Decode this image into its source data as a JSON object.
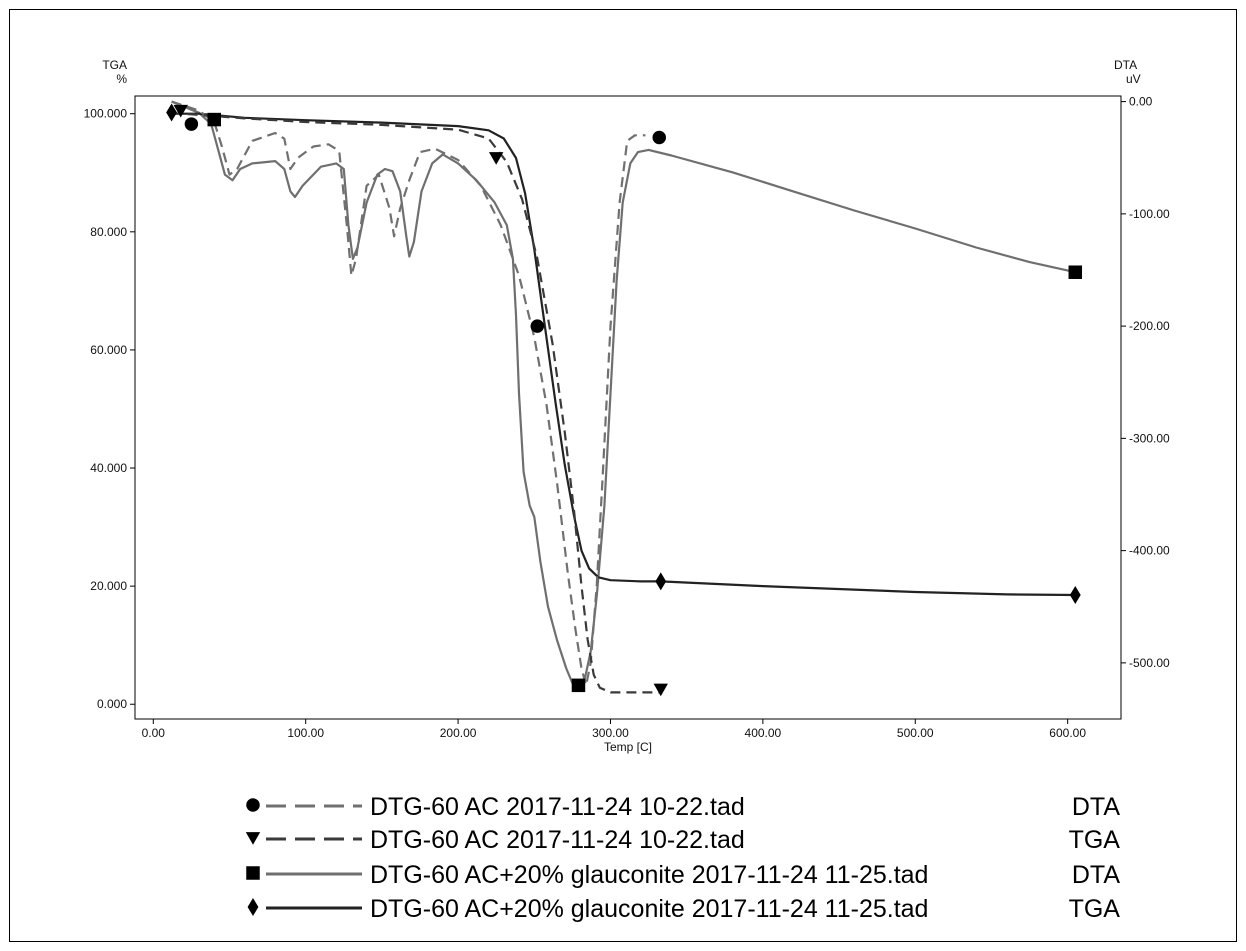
{
  "chart_data": {
    "type": "line",
    "title": "",
    "xlabel": "Temp  [C]",
    "y_left": {
      "title_line1": "TGA",
      "title_line2": "%",
      "ticks": [
        0,
        20,
        40,
        60,
        80,
        100
      ],
      "tick_labels": [
        "0.000",
        "20.000",
        "40.000",
        "60.000",
        "80.000",
        "100.000"
      ],
      "range": [
        -2.5,
        103
      ]
    },
    "y_right": {
      "title_line1": "DTA",
      "title_line2": "uV",
      "ticks": [
        0,
        -100,
        -200,
        -300,
        -400,
        -500
      ],
      "tick_labels": [
        "0.00",
        "-100.00",
        "-200.00",
        "-300.00",
        "-400.00",
        "-500.00"
      ],
      "range": [
        -550,
        5
      ]
    },
    "x_axis": {
      "ticks": [
        0,
        100,
        200,
        300,
        400,
        500,
        600
      ],
      "tick_labels": [
        "0.00",
        "100.00",
        "200.00",
        "300.00",
        "400.00",
        "500.00",
        "600.00"
      ],
      "range": [
        -12,
        635
      ]
    },
    "grid": false,
    "legend_position": "bottom",
    "series": [
      {
        "name": "DTG-60 AC 2017-11-24 10-22.tad",
        "quantity": "DTA",
        "axis": "right",
        "marker": "circle",
        "dash": "dashed",
        "color": "#707070",
        "points": [
          [
            12,
            0
          ],
          [
            30,
            -8
          ],
          [
            40,
            -18
          ],
          [
            45,
            -40
          ],
          [
            50,
            -65
          ],
          [
            55,
            -60
          ],
          [
            65,
            -35
          ],
          [
            80,
            -28
          ],
          [
            86,
            -33
          ],
          [
            90,
            -60
          ],
          [
            95,
            -50
          ],
          [
            105,
            -40
          ],
          [
            115,
            -38
          ],
          [
            122,
            -44
          ],
          [
            127,
            -110
          ],
          [
            130,
            -155
          ],
          [
            133,
            -140
          ],
          [
            140,
            -75
          ],
          [
            148,
            -65
          ],
          [
            155,
            -95
          ],
          [
            158,
            -120
          ],
          [
            162,
            -95
          ],
          [
            168,
            -70
          ],
          [
            175,
            -45
          ],
          [
            185,
            -42
          ],
          [
            200,
            -52
          ],
          [
            215,
            -75
          ],
          [
            228,
            -110
          ],
          [
            240,
            -155
          ],
          [
            250,
            -210
          ],
          [
            258,
            -270
          ],
          [
            265,
            -340
          ],
          [
            272,
            -420
          ],
          [
            277,
            -470
          ],
          [
            281,
            -505
          ],
          [
            284,
            -520
          ],
          [
            287,
            -500
          ],
          [
            291,
            -430
          ],
          [
            295,
            -330
          ],
          [
            300,
            -200
          ],
          [
            306,
            -90
          ],
          [
            311,
            -35
          ],
          [
            316,
            -30
          ],
          [
            320,
            -30
          ],
          [
            323,
            -30
          ]
        ],
        "markers": [
          [
            25,
            -20
          ],
          [
            252,
            -200
          ],
          [
            332,
            -32
          ]
        ]
      },
      {
        "name": "DTG-60 AC 2017-11-24 10-22.tad",
        "quantity": "TGA",
        "axis": "left",
        "marker": "triangle-down",
        "dash": "dashed",
        "color": "#3a3a3a",
        "points": [
          [
            12,
            100
          ],
          [
            20,
            100
          ],
          [
            60,
            99.2
          ],
          [
            100,
            98.6
          ],
          [
            150,
            98.1
          ],
          [
            200,
            97.3
          ],
          [
            220,
            95.8
          ],
          [
            232,
            91.8
          ],
          [
            242,
            85.5
          ],
          [
            252,
            75.5
          ],
          [
            262,
            61
          ],
          [
            270,
            46
          ],
          [
            276,
            33
          ],
          [
            281,
            20
          ],
          [
            285,
            11
          ],
          [
            289,
            5
          ],
          [
            293,
            2.8
          ],
          [
            300,
            2
          ],
          [
            312,
            2
          ],
          [
            320,
            2
          ],
          [
            333,
            2
          ]
        ],
        "markers": [
          [
            18,
            100.5
          ],
          [
            225,
            92.5
          ],
          [
            333,
            2.5
          ]
        ]
      },
      {
        "name": "DTG-60 AC+20% glauconite 2017-11-24 11-25.tad",
        "quantity": "DTA",
        "axis": "right",
        "marker": "square",
        "dash": "solid",
        "color": "#6f6f6f",
        "points": [
          [
            12,
            0
          ],
          [
            30,
            -10
          ],
          [
            38,
            -20
          ],
          [
            43,
            -45
          ],
          [
            47,
            -65
          ],
          [
            52,
            -70
          ],
          [
            57,
            -60
          ],
          [
            65,
            -55
          ],
          [
            80,
            -53
          ],
          [
            86,
            -60
          ],
          [
            90,
            -80
          ],
          [
            93,
            -85
          ],
          [
            98,
            -75
          ],
          [
            110,
            -58
          ],
          [
            120,
            -55
          ],
          [
            125,
            -60
          ],
          [
            128,
            -110
          ],
          [
            131,
            -140
          ],
          [
            134,
            -130
          ],
          [
            140,
            -90
          ],
          [
            147,
            -65
          ],
          [
            152,
            -60
          ],
          [
            157,
            -62
          ],
          [
            162,
            -80
          ],
          [
            166,
            -120
          ],
          [
            168,
            -138
          ],
          [
            171,
            -125
          ],
          [
            176,
            -80
          ],
          [
            183,
            -55
          ],
          [
            190,
            -47
          ],
          [
            200,
            -55
          ],
          [
            212,
            -70
          ],
          [
            224,
            -90
          ],
          [
            232,
            -110
          ],
          [
            236,
            -140
          ],
          [
            238,
            -190
          ],
          [
            240,
            -260
          ],
          [
            243,
            -330
          ],
          [
            247,
            -360
          ],
          [
            250,
            -370
          ],
          [
            254,
            -410
          ],
          [
            259,
            -450
          ],
          [
            265,
            -480
          ],
          [
            271,
            -505
          ],
          [
            275,
            -518
          ],
          [
            279,
            -520
          ],
          [
            283,
            -515
          ],
          [
            287,
            -490
          ],
          [
            291,
            -440
          ],
          [
            296,
            -360
          ],
          [
            300,
            -260
          ],
          [
            304,
            -160
          ],
          [
            308,
            -90
          ],
          [
            313,
            -55
          ],
          [
            318,
            -45
          ],
          [
            325,
            -43
          ],
          [
            340,
            -48
          ],
          [
            380,
            -63
          ],
          [
            420,
            -80
          ],
          [
            460,
            -97
          ],
          [
            500,
            -113
          ],
          [
            540,
            -130
          ],
          [
            575,
            -143
          ],
          [
            605,
            -152
          ]
        ],
        "markers": [
          [
            40,
            -16
          ],
          [
            279,
            -520
          ],
          [
            605,
            -152
          ]
        ]
      },
      {
        "name": "DTG-60 AC+20% glauconite 2017-11-24 11-25.tad",
        "quantity": "TGA",
        "axis": "left",
        "marker": "diamond",
        "dash": "solid",
        "color": "#222222",
        "points": [
          [
            12,
            100
          ],
          [
            30,
            100
          ],
          [
            60,
            99.3
          ],
          [
            100,
            98.9
          ],
          [
            150,
            98.5
          ],
          [
            200,
            97.9
          ],
          [
            220,
            97.2
          ],
          [
            230,
            95.8
          ],
          [
            238,
            92.5
          ],
          [
            244,
            86.5
          ],
          [
            250,
            77
          ],
          [
            257,
            64
          ],
          [
            264,
            51
          ],
          [
            270,
            40.5
          ],
          [
            276,
            32
          ],
          [
            281,
            26
          ],
          [
            286,
            23
          ],
          [
            292,
            21.5
          ],
          [
            300,
            21
          ],
          [
            320,
            20.8
          ],
          [
            333,
            20.8
          ],
          [
            400,
            20
          ],
          [
            500,
            19
          ],
          [
            560,
            18.6
          ],
          [
            605,
            18.5
          ]
        ],
        "markers": [
          [
            12,
            100.2
          ],
          [
            333,
            20.8
          ],
          [
            605,
            18.5
          ]
        ]
      }
    ]
  }
}
